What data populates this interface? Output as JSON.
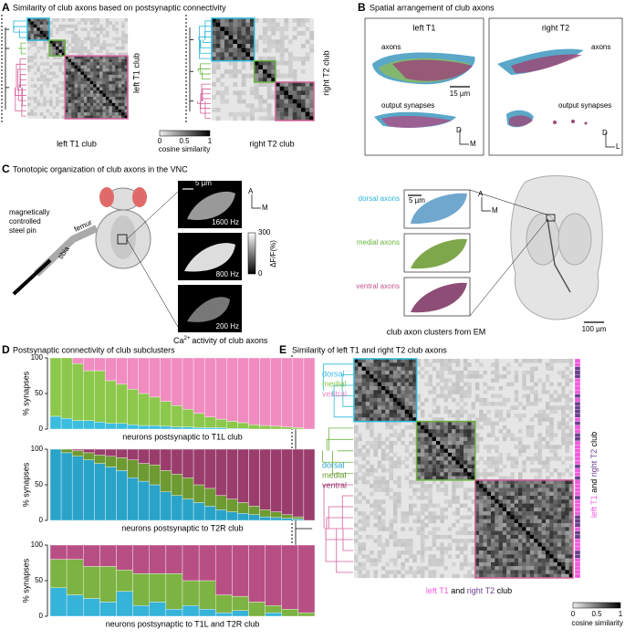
{
  "A": {
    "label": "A",
    "title": "Similarity of club axons based on postsynaptic connectivity",
    "left_side": "left T1 club",
    "left_bottom": "left T1 club",
    "right_side": "right T2 club",
    "right_bottom": "right T2 club",
    "colorbar": {
      "ticks": [
        "0",
        "0.5",
        "1"
      ],
      "label": "cosine similarity"
    }
  },
  "B": {
    "label": "B",
    "title": "Spatial arrangement of club axons",
    "left": {
      "title": "left T1",
      "axons": "axons",
      "synapses": "output synapses",
      "scale": "15 µm",
      "d": "D",
      "m": "M"
    },
    "right": {
      "title": "right T2",
      "axons": "axons",
      "synapses": "output synapses",
      "d": "D",
      "l": "L"
    }
  },
  "C": {
    "label": "C",
    "title": "Tonotopic organization of club axons in the VNC",
    "pin": [
      "magnetically",
      "controlled",
      "steel pin"
    ],
    "tibia": "tibia",
    "femur": "femur",
    "imaging": {
      "scale": "5 µm",
      "a": "A",
      "m": "M",
      "freqs": [
        "1600 Hz",
        "800 Hz",
        "200 Hz"
      ],
      "colorbar": {
        "top": "300",
        "bottom": "0",
        "label": "ΔF/F(%)"
      },
      "caption": {
        "pre": "Ca",
        "sup": "2+",
        "post": "activity of club axons"
      }
    },
    "em": {
      "clusters": [
        "dorsal axons",
        "medial axons",
        "ventral axons"
      ],
      "scale": "5 µm",
      "a": "A",
      "m": "M",
      "caption": "club axon clusters from EM",
      "scale2": "100 µm"
    }
  },
  "D": {
    "label": "D",
    "title": "Postsynaptic connectivity of club subclusters",
    "charts": [
      {
        "type": "bar",
        "stacked": true,
        "ylabel": "% synapses",
        "xlabel": "neurons postsynaptic to T1L club",
        "ylim": [
          0,
          100
        ],
        "yticks": [
          0,
          50,
          100
        ],
        "series": [
          {
            "name": "dorsal",
            "color": "#3bbde0",
            "values": [
              18,
              15,
              12,
              12,
              10,
              8,
              8,
              6,
              5,
              5,
              4,
              3,
              3,
              2,
              2,
              2,
              1,
              1,
              0,
              0,
              0,
              0,
              0,
              0
            ]
          },
          {
            "name": "medial",
            "color": "#8cc84b",
            "values": [
              82,
              85,
              80,
              70,
              72,
              60,
              55,
              50,
              45,
              40,
              35,
              30,
              25,
              20,
              15,
              12,
              10,
              8,
              6,
              5,
              4,
              3,
              2,
              0
            ]
          },
          {
            "name": "ventral",
            "color": "#f08cc0",
            "values": [
              0,
              0,
              8,
              18,
              18,
              32,
              37,
              44,
              50,
              55,
              61,
              67,
              72,
              78,
              83,
              86,
              89,
              91,
              94,
              95,
              96,
              97,
              98,
              100
            ]
          }
        ]
      },
      {
        "type": "bar",
        "stacked": true,
        "ylabel": "% synapses",
        "xlabel": "neurons postsynaptic to T2R club",
        "ylim": [
          0,
          100
        ],
        "yticks": [
          0,
          50,
          100
        ],
        "series": [
          {
            "name": "dorsal",
            "color": "#2aa3c9",
            "values": [
              100,
              95,
              90,
              85,
              80,
              75,
              70,
              60,
              55,
              50,
              40,
              35,
              30,
              25,
              20,
              15,
              12,
              10,
              8,
              5,
              4,
              3,
              2,
              0
            ]
          },
          {
            "name": "medial",
            "color": "#6e9a32",
            "values": [
              0,
              5,
              8,
              10,
              12,
              15,
              18,
              25,
              25,
              28,
              30,
              30,
              30,
              25,
              25,
              20,
              18,
              15,
              12,
              10,
              8,
              5,
              3,
              0
            ]
          },
          {
            "name": "ventral",
            "color": "#9a3d6d",
            "values": [
              0,
              0,
              2,
              5,
              8,
              10,
              12,
              15,
              20,
              22,
              30,
              35,
              40,
              50,
              55,
              65,
              70,
              75,
              80,
              85,
              88,
              92,
              95,
              100
            ]
          }
        ]
      },
      {
        "type": "bar",
        "stacked": true,
        "ylabel": "% synapses",
        "xlabel": "neurons postsynaptic to T1L and T2R club",
        "ylim": [
          0,
          100
        ],
        "yticks": [
          0,
          50,
          100
        ],
        "series": [
          {
            "color": "#36b3d9",
            "values": [
              40,
              30,
              25,
              20,
              35,
              15,
              20,
              10,
              15,
              10,
              5,
              8,
              0,
              5,
              0,
              0
            ]
          },
          {
            "color": "#7cb342",
            "values": [
              40,
              50,
              45,
              50,
              30,
              45,
              40,
              50,
              35,
              40,
              25,
              20,
              20,
              10,
              10,
              5
            ]
          },
          {
            "color": "#b84f84",
            "values": [
              20,
              20,
              30,
              30,
              35,
              40,
              40,
              40,
              50,
              50,
              70,
              72,
              80,
              85,
              90,
              95
            ]
          }
        ]
      }
    ]
  },
  "E": {
    "label": "E",
    "title": "Similarity of left T1 and right T2 club axons",
    "caption": [
      "left T1",
      "and",
      "right T2",
      "club"
    ],
    "colorbar": {
      "ticks": [
        "0",
        "0.5",
        "1"
      ],
      "label": "cosine similarity"
    }
  }
}
